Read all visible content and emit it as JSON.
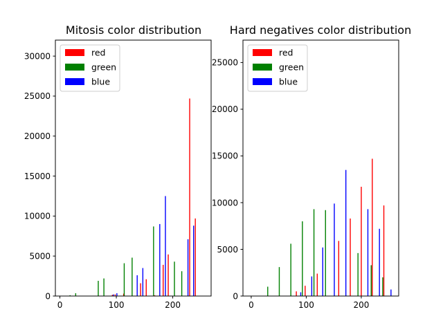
{
  "chart_data": [
    {
      "type": "bar",
      "title": "Mitosis color distribution",
      "xlabel": "",
      "ylabel": "",
      "xlim": [
        -8,
        268
      ],
      "ylim": [
        0,
        32000
      ],
      "xticks": [
        0,
        100,
        200
      ],
      "yticks": [
        0,
        5000,
        10000,
        15000,
        20000,
        25000,
        30000
      ],
      "legend": "top-left",
      "series": [
        {
          "name": "red",
          "color": "#ff0000",
          "x": [
            93,
            98,
            113,
            143,
            153,
            168,
            183,
            192,
            230,
            240
          ],
          "values": [
            150,
            200,
            300,
            1600,
            2100,
            100,
            3900,
            5200,
            24700,
            9700
          ]
        },
        {
          "name": "green",
          "color": "#008000",
          "x": [
            18,
            28,
            68,
            78,
            114,
            128,
            166,
            203,
            216
          ],
          "values": [
            100,
            350,
            1900,
            2200,
            4100,
            4800,
            8700,
            4300,
            3100
          ]
        },
        {
          "name": "blue",
          "color": "#0000ff",
          "x": [
            95,
            101,
            137,
            147,
            177,
            187,
            227,
            237
          ],
          "values": [
            200,
            350,
            2600,
            3500,
            9000,
            12500,
            7100,
            8800
          ]
        }
      ]
    },
    {
      "type": "bar",
      "title": "Hard negatives color distribution",
      "xlabel": "",
      "ylabel": "",
      "xlim": [
        -15,
        268
      ],
      "ylim": [
        0,
        27400
      ],
      "xticks": [
        0,
        100,
        200
      ],
      "yticks": [
        0,
        5000,
        10000,
        15000,
        20000,
        25000
      ],
      "legend": "top-left",
      "series": [
        {
          "name": "red",
          "color": "#ff0000",
          "x": [
            82,
            98,
            120,
            159,
            180,
            200,
            220,
            241
          ],
          "values": [
            500,
            1100,
            2400,
            5900,
            8300,
            11700,
            14700,
            9700
          ]
        },
        {
          "name": "green",
          "color": "#008000",
          "x": [
            30,
            51,
            72,
            93,
            114,
            135,
            194,
            218,
            239
          ],
          "values": [
            1000,
            3100,
            5600,
            8000,
            9300,
            9200,
            4600,
            3300,
            2000
          ]
        },
        {
          "name": "blue",
          "color": "#0000ff",
          "x": [
            90,
            110,
            130,
            151,
            172,
            212,
            233,
            254
          ],
          "values": [
            400,
            2100,
            5200,
            9900,
            13500,
            9300,
            7200,
            700
          ]
        }
      ]
    }
  ]
}
